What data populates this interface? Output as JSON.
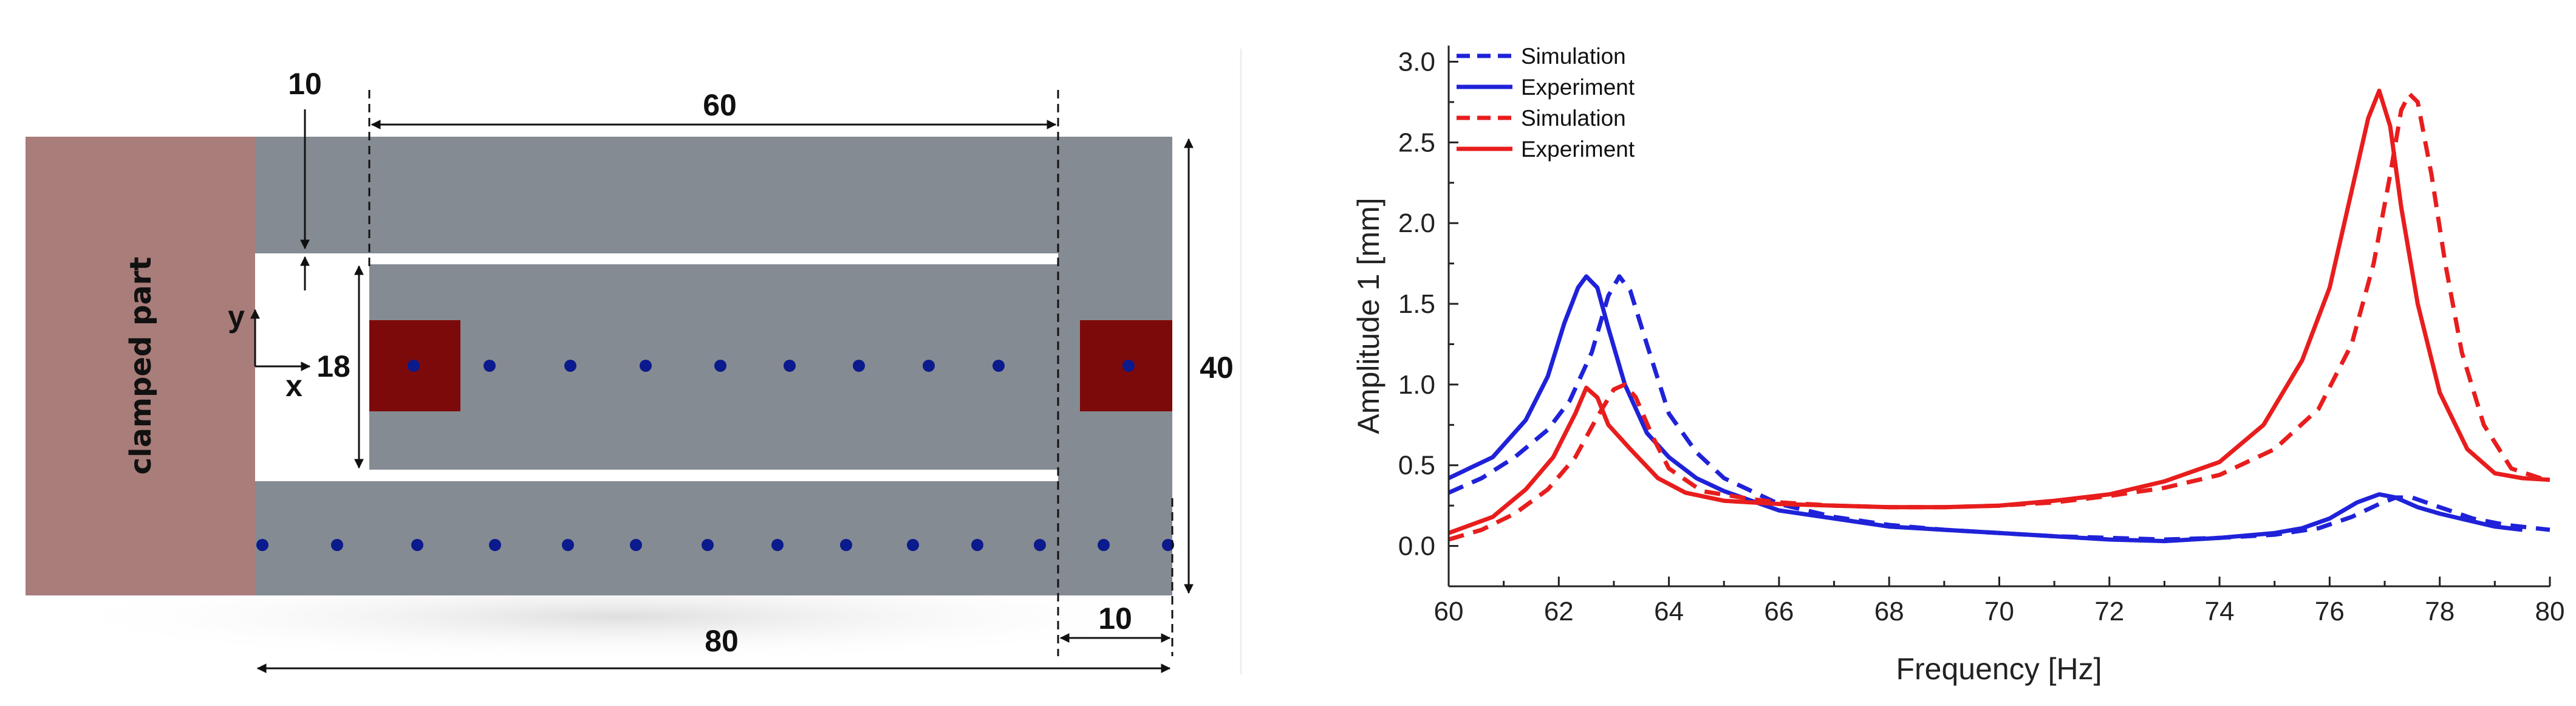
{
  "diagram": {
    "clamped_label": "clamped part",
    "dim_10_top": "10",
    "dim_60": "60",
    "dim_18": "18",
    "dim_40": "40",
    "dim_80": "80",
    "dim_10_bottom": "10",
    "axis_y": "y",
    "axis_x": "x",
    "colors": {
      "clamp": "#a97d7a",
      "beam": "#858b92",
      "mass": "#7d0a0a",
      "dot": "#0b1a8c",
      "dim": "#111111"
    }
  },
  "chart_data": {
    "type": "line",
    "xlabel": "Frequency [Hz]",
    "ylabel": "Amplitude 1 [mm]",
    "xlim": [
      60,
      80
    ],
    "ylim": [
      -0.25,
      3.1
    ],
    "xticks": [
      "60",
      "62",
      "64",
      "66",
      "68",
      "70",
      "72",
      "74",
      "76",
      "78",
      "80"
    ],
    "yticks": [
      "0.0",
      "0.5",
      "1.0",
      "1.5",
      "2.0",
      "2.5",
      "3.0"
    ],
    "legend_position": "top-left",
    "series": [
      {
        "name": "Simulation",
        "color": "#1f22d8",
        "style": "dashed",
        "x": [
          60,
          60.6,
          61.2,
          61.8,
          62.2,
          62.6,
          62.9,
          63.1,
          63.3,
          63.6,
          64,
          64.5,
          65,
          66,
          67,
          68,
          69,
          70,
          71,
          72,
          73,
          74,
          75,
          75.8,
          76.4,
          76.9,
          77.2,
          77.5,
          78,
          78.6,
          79.2,
          80
        ],
        "values": [
          0.33,
          0.42,
          0.55,
          0.72,
          0.9,
          1.2,
          1.55,
          1.67,
          1.58,
          1.25,
          0.82,
          0.58,
          0.42,
          0.26,
          0.18,
          0.13,
          0.1,
          0.08,
          0.06,
          0.05,
          0.04,
          0.05,
          0.07,
          0.11,
          0.18,
          0.26,
          0.3,
          0.3,
          0.24,
          0.17,
          0.13,
          0.1
        ]
      },
      {
        "name": "Experiment",
        "color": "#1f22d8",
        "style": "solid",
        "x": [
          60,
          60.8,
          61.4,
          61.8,
          62.1,
          62.35,
          62.5,
          62.7,
          62.9,
          63.2,
          63.6,
          64,
          64.5,
          65,
          66,
          67,
          68,
          69,
          70,
          71,
          72,
          73,
          74,
          75,
          75.5,
          76,
          76.5,
          76.9,
          77.2,
          77.6,
          78,
          78.5,
          79,
          79.5
        ],
        "values": [
          0.42,
          0.55,
          0.78,
          1.05,
          1.38,
          1.6,
          1.67,
          1.6,
          1.35,
          1.0,
          0.7,
          0.55,
          0.42,
          0.34,
          0.22,
          0.17,
          0.12,
          0.1,
          0.08,
          0.06,
          0.04,
          0.03,
          0.05,
          0.08,
          0.11,
          0.17,
          0.27,
          0.32,
          0.3,
          0.24,
          0.2,
          0.16,
          0.12,
          0.1
        ]
      },
      {
        "name": "Simulation",
        "color": "#e81d1d",
        "style": "dashed",
        "x": [
          60,
          60.6,
          61.2,
          61.8,
          62.3,
          62.7,
          63,
          63.2,
          63.4,
          63.7,
          64,
          64.6,
          65.5,
          66,
          67,
          68,
          69,
          70,
          71,
          72,
          73,
          74,
          75,
          75.8,
          76.4,
          76.8,
          77.1,
          77.3,
          77.45,
          77.6,
          77.85,
          78.1,
          78.4,
          78.8,
          79.3,
          80
        ],
        "values": [
          0.04,
          0.1,
          0.2,
          0.35,
          0.55,
          0.8,
          0.97,
          1.0,
          0.92,
          0.68,
          0.48,
          0.34,
          0.29,
          0.27,
          0.25,
          0.24,
          0.24,
          0.25,
          0.27,
          0.31,
          0.36,
          0.44,
          0.6,
          0.85,
          1.25,
          1.75,
          2.3,
          2.7,
          2.8,
          2.75,
          2.3,
          1.75,
          1.2,
          0.75,
          0.48,
          0.4
        ]
      },
      {
        "name": "Experiment",
        "color": "#e81d1d",
        "style": "solid",
        "x": [
          60,
          60.8,
          61.4,
          61.9,
          62.3,
          62.5,
          62.7,
          62.9,
          63.3,
          63.8,
          64.3,
          65,
          66,
          67,
          68,
          69,
          70,
          71,
          72,
          73,
          74,
          74.8,
          75.5,
          76,
          76.4,
          76.7,
          76.9,
          77.1,
          77.3,
          77.6,
          78,
          78.5,
          79,
          79.5,
          80
        ],
        "values": [
          0.08,
          0.18,
          0.35,
          0.55,
          0.82,
          0.98,
          0.92,
          0.75,
          0.6,
          0.42,
          0.33,
          0.28,
          0.26,
          0.25,
          0.24,
          0.24,
          0.25,
          0.28,
          0.32,
          0.4,
          0.52,
          0.75,
          1.15,
          1.6,
          2.2,
          2.65,
          2.82,
          2.6,
          2.1,
          1.5,
          0.95,
          0.6,
          0.45,
          0.42,
          0.41
        ]
      }
    ]
  }
}
